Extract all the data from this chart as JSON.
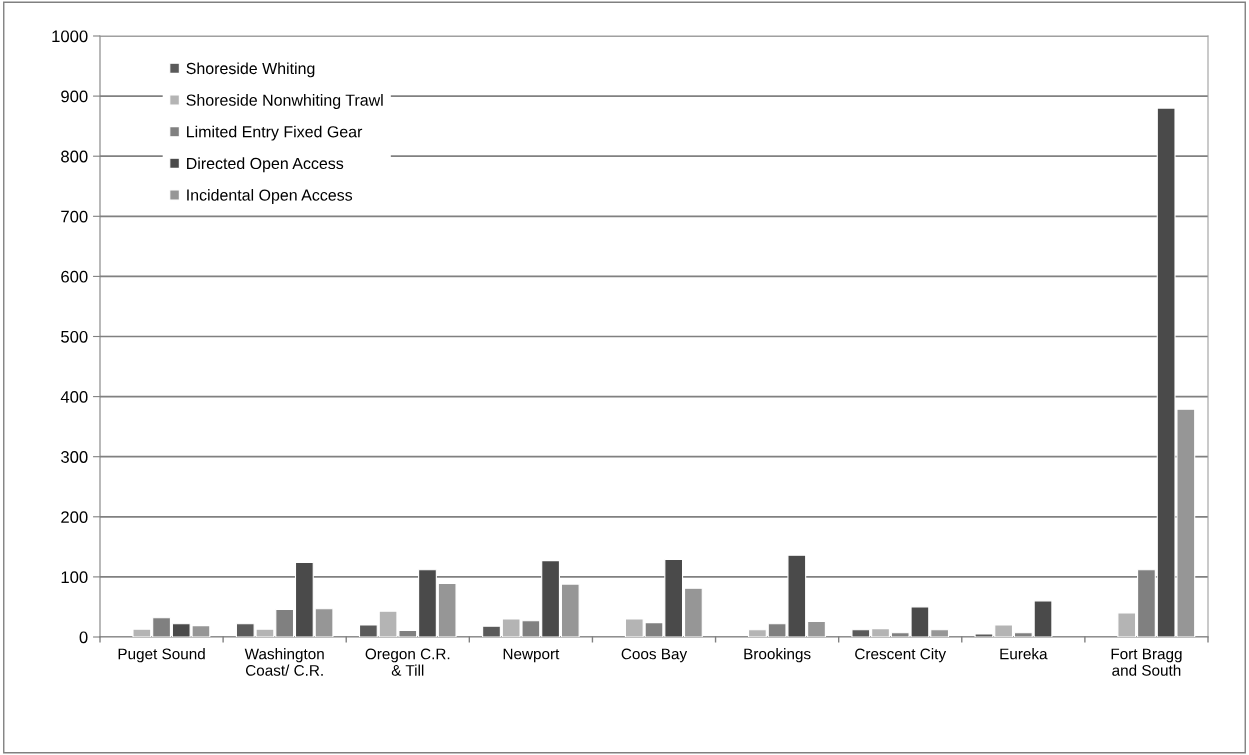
{
  "chart_data": {
    "type": "bar",
    "categories": [
      "Puget Sound",
      "Washington\nCoast/ C.R.",
      "Oregon C.R.\n& Till",
      "Newport",
      "Coos Bay",
      "Brookings",
      "Crescent City",
      "Eureka",
      "Fort Bragg\nand South"
    ],
    "series": [
      {
        "name": "Shoreside Whiting",
        "color": "#5a5a5a",
        "values": [
          null,
          22,
          20,
          18,
          null,
          null,
          12,
          5,
          null
        ]
      },
      {
        "name": "Shoreside Nonwhiting Trawl",
        "color": "#b4b4b4",
        "values": [
          13,
          13,
          43,
          30,
          30,
          12,
          14,
          20,
          40
        ]
      },
      {
        "name": "Limited Entry Fixed Gear",
        "color": "#808080",
        "values": [
          32,
          46,
          11,
          27,
          24,
          22,
          7,
          7,
          112
        ]
      },
      {
        "name": "Directed Open Access",
        "color": "#4a4a4a",
        "values": [
          22,
          124,
          112,
          127,
          129,
          136,
          50,
          60,
          880
        ]
      },
      {
        "name": "Incidental Open Access",
        "color": "#969696",
        "values": [
          19,
          47,
          89,
          88,
          81,
          26,
          12,
          null,
          379
        ]
      }
    ],
    "ylim": [
      0,
      1000
    ],
    "yticks": [
      0,
      100,
      200,
      300,
      400,
      500,
      600,
      700,
      800,
      900,
      1000
    ],
    "grid": "y",
    "legend": "top left"
  }
}
